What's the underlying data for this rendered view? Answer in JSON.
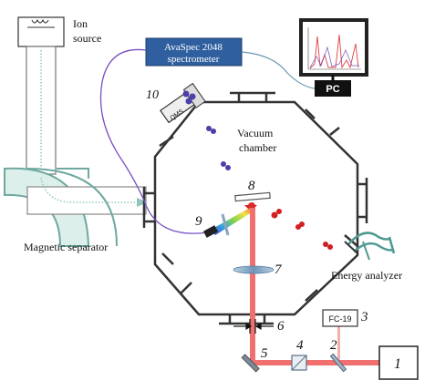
{
  "labels": {
    "ion_source": "Ion\nsource",
    "spectrometer": "AvaSpec 2048\nspectrometer",
    "pc": "PC",
    "qms": "QMS",
    "vacuum_chamber": "Vacuum\nchamber",
    "magnetic_separator": "Magnetic separator",
    "energy_analyzer": "Energy analyzer",
    "fc19": "FC-19"
  },
  "numbers": {
    "n1": "1",
    "n2": "2",
    "n3": "3",
    "n4": "4",
    "n5": "5",
    "n6": "6",
    "n7": "7",
    "n8": "8",
    "n9": "9",
    "n10": "10"
  },
  "colors": {
    "laser": "#f07070",
    "magnet": "#6fa8a0",
    "spectrometer_box": "#2f5f9e",
    "fiber": "#7a4fc4",
    "cable": "#6a9ab0",
    "particles_blue": "#4c3fa8",
    "particles_red": "#d22020"
  }
}
